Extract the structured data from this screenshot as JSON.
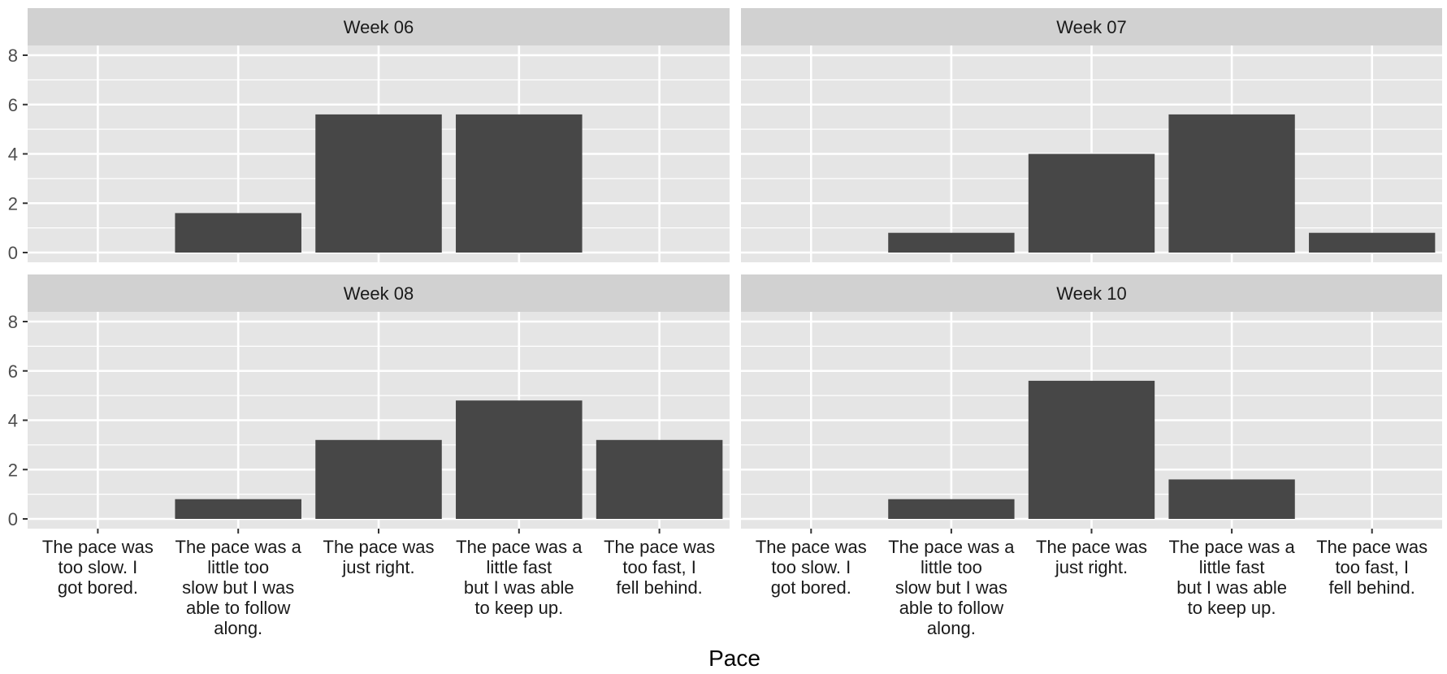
{
  "chart_data": {
    "type": "bar",
    "xlabel": "Pace",
    "ylabel": "",
    "ylim": [
      0,
      8
    ],
    "yticks": [
      0,
      2,
      4,
      6,
      8
    ],
    "grid": true,
    "facet_layout": "2x2",
    "colors": {
      "bar": "#474747",
      "panel_bg": "#e5e5e5",
      "strip_bg": "#d1d1d1",
      "grid": "#ffffff"
    },
    "categories": [
      [
        "The pace was",
        "too slow. I",
        "got bored."
      ],
      [
        "The pace was a",
        "little too",
        "slow but I was",
        "able to follow",
        "along."
      ],
      [
        "The pace was",
        "just right."
      ],
      [
        "The pace was a",
        "little fast",
        "but I was able",
        "to keep up."
      ],
      [
        "The pace was",
        "too fast, I",
        "fell behind."
      ]
    ],
    "facets": [
      {
        "label": "Week 06",
        "values": [
          0,
          1.6,
          5.6,
          5.6,
          0
        ]
      },
      {
        "label": "Week 07",
        "values": [
          0,
          0.8,
          4.0,
          5.6,
          0.8
        ]
      },
      {
        "label": "Week 08",
        "values": [
          0,
          0.8,
          3.2,
          4.8,
          3.2
        ]
      },
      {
        "label": "Week 10",
        "values": [
          0,
          0.8,
          5.6,
          1.6,
          0
        ]
      }
    ]
  }
}
